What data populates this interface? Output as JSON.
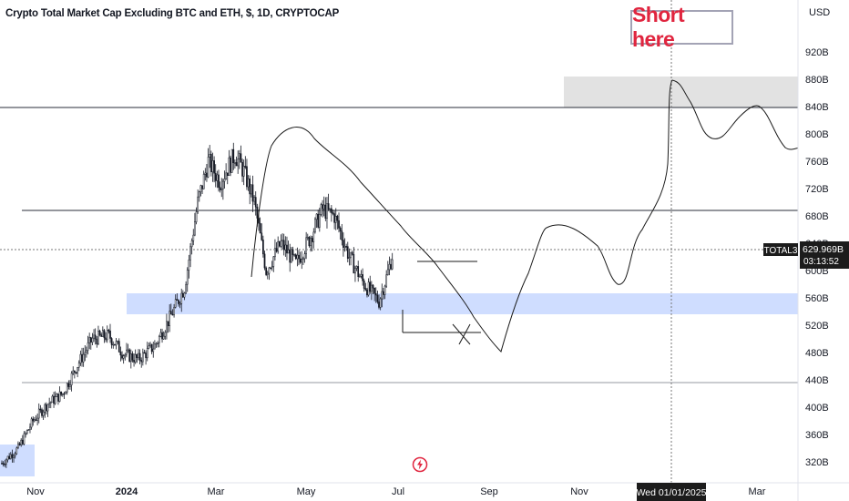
{
  "chart_data": {
    "type": "candlestick",
    "title": "Crypto Total Market Cap Excluding BTC and ETH, $, 1D, CRYPTOCAP",
    "currency": "USD",
    "symbol": "TOTAL3",
    "price_label": "629.969B",
    "countdown": "03:13:52",
    "annotation": "Short here",
    "crosshair_date_label": "Wed 01/01/2025",
    "y_unit": "B",
    "y_ticks": [
      920,
      880,
      840,
      800,
      760,
      720,
      680,
      640,
      600,
      560,
      520,
      480,
      440,
      400,
      360,
      320
    ],
    "y_tick_labels": [
      "920B",
      "880B",
      "840B",
      "800B",
      "760B",
      "720B",
      "680B",
      "640B",
      "600B",
      "560B",
      "520B",
      "480B",
      "440B",
      "400B",
      "360B",
      "320B"
    ],
    "x_tick_labels": [
      "Nov",
      "2024",
      "Mar",
      "May",
      "Jul",
      "Sep",
      "Nov",
      "Mar"
    ],
    "horizontal_lines": [
      840,
      686,
      437
    ],
    "zones": [
      {
        "name": "supply",
        "from": 838,
        "to": 883,
        "color": "#e0e0e0"
      },
      {
        "name": "demand",
        "from": 540,
        "to": 567,
        "color": "#cdddff"
      },
      {
        "name": "low",
        "from": 309,
        "to": 343,
        "color": "#cdddff"
      }
    ],
    "price_path": [
      {
        "date": "2023-10-25",
        "close": 318
      },
      {
        "date": "2023-11-05",
        "close": 340
      },
      {
        "date": "2023-11-15",
        "close": 380
      },
      {
        "date": "2023-11-25",
        "close": 405
      },
      {
        "date": "2023-12-05",
        "close": 420
      },
      {
        "date": "2023-12-15",
        "close": 462
      },
      {
        "date": "2023-12-25",
        "close": 500
      },
      {
        "date": "2024-01-05",
        "close": 505
      },
      {
        "date": "2024-01-15",
        "close": 478
      },
      {
        "date": "2024-01-25",
        "close": 470
      },
      {
        "date": "2024-02-05",
        "close": 490
      },
      {
        "date": "2024-02-15",
        "close": 530
      },
      {
        "date": "2024-02-25",
        "close": 575
      },
      {
        "date": "2024-03-05",
        "close": 700
      },
      {
        "date": "2024-03-12",
        "close": 760
      },
      {
        "date": "2024-03-20",
        "close": 730
      },
      {
        "date": "2024-03-30",
        "close": 770
      },
      {
        "date": "2024-04-05",
        "close": 745
      },
      {
        "date": "2024-04-12",
        "close": 700
      },
      {
        "date": "2024-04-20",
        "close": 600
      },
      {
        "date": "2024-04-30",
        "close": 640
      },
      {
        "date": "2024-05-10",
        "close": 610
      },
      {
        "date": "2024-05-20",
        "close": 650
      },
      {
        "date": "2024-05-28",
        "close": 690
      },
      {
        "date": "2024-06-05",
        "close": 680
      },
      {
        "date": "2024-06-15",
        "close": 620
      },
      {
        "date": "2024-06-25",
        "close": 580
      },
      {
        "date": "2024-07-05",
        "close": 555
      },
      {
        "date": "2024-07-10",
        "close": 590
      },
      {
        "date": "2024-07-15",
        "close": 630
      }
    ]
  }
}
